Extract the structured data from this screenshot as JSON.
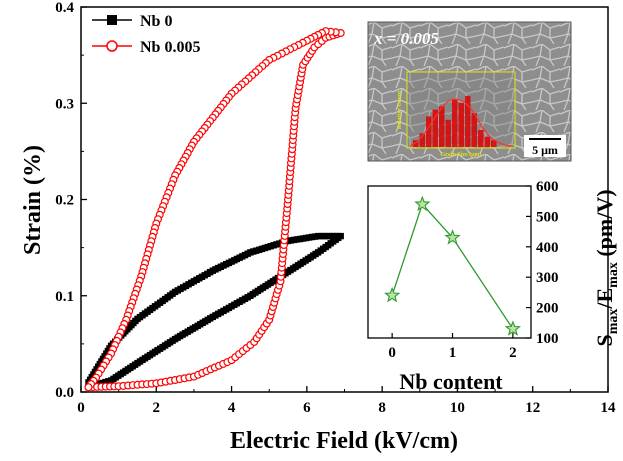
{
  "chart_data": [
    {
      "type": "line",
      "xlabel": "Electric Field (kV/cm)",
      "ylabel": "Strain (%)",
      "xlim": [
        0,
        14
      ],
      "ylim": [
        0,
        0.4
      ],
      "xticks": [
        "0",
        "2",
        "4",
        "6",
        "8",
        "10",
        "12",
        "14"
      ],
      "yticks": [
        "0.0",
        "0.1",
        "0.2",
        "0.3",
        "0.4"
      ],
      "legend_position": "top-left",
      "series": [
        {
          "name": "Nb 0",
          "marker": "filled-square",
          "color": "#000000",
          "x": [
            0.2,
            0.8,
            1.5,
            2.5,
            3.5,
            4.5,
            5.5,
            6.3,
            6.9,
            6.3,
            5.5,
            4.5,
            3.5,
            2.5,
            1.5,
            0.8,
            0.2
          ],
          "y": [
            0.005,
            0.012,
            0.03,
            0.055,
            0.078,
            0.1,
            0.125,
            0.145,
            0.162,
            0.162,
            0.157,
            0.145,
            0.126,
            0.104,
            0.076,
            0.048,
            0.01
          ]
        },
        {
          "name": "Nb 0.005",
          "marker": "open-circle",
          "color": "#ff0000",
          "x": [
            0.2,
            1.0,
            2.0,
            3.0,
            4.0,
            4.6,
            5.0,
            5.3,
            5.5,
            5.7,
            5.9,
            6.2,
            6.5,
            6.9,
            6.5,
            6.0,
            5.0,
            4.0,
            3.0,
            2.5,
            2.0,
            1.6,
            1.2,
            0.8,
            0.4,
            0.2
          ],
          "y": [
            0.005,
            0.006,
            0.009,
            0.016,
            0.033,
            0.052,
            0.075,
            0.115,
            0.2,
            0.295,
            0.34,
            0.358,
            0.368,
            0.373,
            0.375,
            0.365,
            0.345,
            0.31,
            0.26,
            0.225,
            0.175,
            0.12,
            0.075,
            0.04,
            0.015,
            0.005
          ]
        }
      ]
    },
    {
      "type": "line",
      "xlabel": "Nb content",
      "ylabel": "S_max/E_max (pm/V)",
      "xlim": [
        -0.4,
        2.3
      ],
      "ylim": [
        100,
        600
      ],
      "xticks": [
        "0",
        "1",
        "2"
      ],
      "yticks": [
        "100",
        "200",
        "300",
        "400",
        "500",
        "600"
      ],
      "series": [
        {
          "marker": "star",
          "color": "#2e9a2e",
          "x": [
            0,
            0.5,
            1,
            2
          ],
          "y": [
            240,
            540,
            430,
            130
          ]
        }
      ]
    }
  ],
  "inset_image": {
    "label": "x = 0.005",
    "scale_bar": "5 μm",
    "histogram_xlabel": "Grain Size (μm)",
    "histogram_ylabel": "Relative Count"
  }
}
